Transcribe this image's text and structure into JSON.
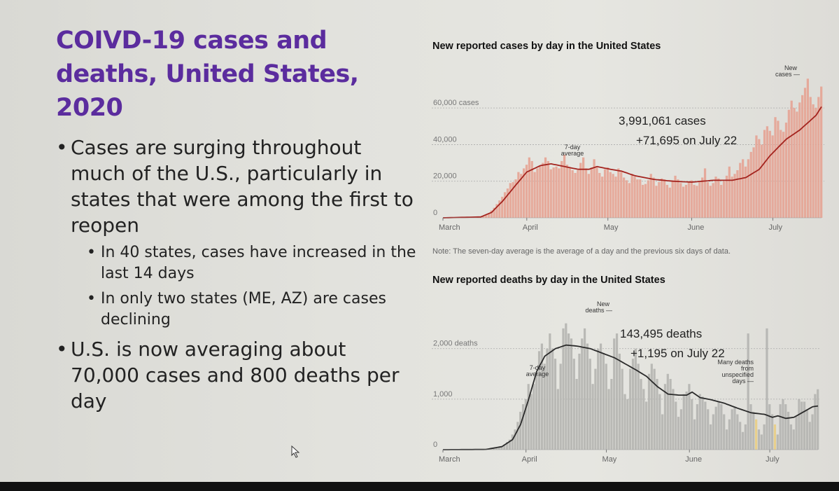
{
  "slide": {
    "title": "COIVD-19 cases and deaths, United States, 2020",
    "bullets": [
      {
        "level": 1,
        "text": "Cases are surging throughout much of the U.S., particularly in states that were among the first to reopen"
      },
      {
        "level": 2,
        "text": "In 40 states, cases have increased in the last 14 days"
      },
      {
        "level": 2,
        "text": "In only two states (ME, AZ) are cases declining"
      },
      {
        "level": 1,
        "text": "U.S. is now averaging about 70,000 cases and 800 deaths per day"
      }
    ]
  },
  "note": "Note: The seven-day average is the average of a day and the previous six days of data.",
  "chart_data": [
    {
      "type": "bar",
      "title": "New reported cases by day in the United States",
      "xlabel": "",
      "ylabel": "",
      "ylim": [
        0,
        70000
      ],
      "yticks": [
        {
          "value": 0,
          "label": "0"
        },
        {
          "value": 20000,
          "label": "20,000"
        },
        {
          "value": 40000,
          "label": "40,000"
        },
        {
          "value": 60000,
          "label": "60,000 cases"
        }
      ],
      "xticks": [
        {
          "day": 0,
          "label": "March"
        },
        {
          "day": 31,
          "label": "April"
        },
        {
          "day": 61,
          "label": "May"
        },
        {
          "day": 92,
          "label": "June"
        },
        {
          "day": 122,
          "label": "July"
        }
      ],
      "grid": true,
      "colors": {
        "bar": "#e6a393",
        "line": "#a3231e"
      },
      "annotations": {
        "total": "3,991,061 cases",
        "latest": "+71,695 on July 22",
        "avg_label": "7-day average",
        "bar_label": "New cases"
      },
      "x_start": "March 1",
      "average_keypoints": [
        [
          0,
          0
        ],
        [
          14,
          500
        ],
        [
          18,
          3000
        ],
        [
          22,
          9000
        ],
        [
          27,
          18000
        ],
        [
          31,
          25000
        ],
        [
          36,
          28500
        ],
        [
          40,
          29500
        ],
        [
          45,
          28000
        ],
        [
          50,
          26500
        ],
        [
          54,
          26500
        ],
        [
          57,
          28000
        ],
        [
          62,
          26500
        ],
        [
          66,
          25500
        ],
        [
          71,
          23000
        ],
        [
          78,
          21000
        ],
        [
          85,
          20000
        ],
        [
          92,
          19500
        ],
        [
          100,
          20500
        ],
        [
          107,
          20500
        ],
        [
          112,
          22000
        ],
        [
          117,
          26500
        ],
        [
          121,
          34000
        ],
        [
          127,
          43000
        ],
        [
          132,
          48000
        ],
        [
          138,
          56000
        ],
        [
          141,
          63000
        ],
        [
          144,
          64500
        ],
        [
          146,
          64500
        ]
      ],
      "daily_values": [
        0,
        0,
        0,
        0,
        0,
        0,
        0,
        0,
        0,
        0,
        0,
        0,
        0,
        300,
        500,
        900,
        1500,
        2500,
        4000,
        5500,
        7500,
        9500,
        11500,
        14000,
        16000,
        19000,
        19500,
        21000,
        25000,
        24000,
        27000,
        29000,
        33000,
        31000,
        25000,
        27000,
        28500,
        30000,
        33000,
        31000,
        26500,
        27500,
        28000,
        27000,
        31000,
        34500,
        29000,
        27500,
        26000,
        24500,
        26000,
        30000,
        33000,
        27000,
        24000,
        27500,
        32000,
        27500,
        24500,
        22500,
        26500,
        27500,
        25000,
        24000,
        22500,
        27000,
        25000,
        22000,
        20500,
        19000,
        24000,
        22500,
        21000,
        21000,
        18000,
        18500,
        20500,
        24000,
        22000,
        17500,
        19500,
        21500,
        21000,
        18000,
        16500,
        20500,
        23000,
        21000,
        19000,
        17000,
        18000,
        19500,
        20500,
        18000,
        17500,
        19500,
        22000,
        27000,
        19500,
        17500,
        19000,
        22500,
        21500,
        18000,
        20000,
        23000,
        28000,
        22500,
        24000,
        26000,
        30000,
        32000,
        28000,
        32000,
        36000,
        38500,
        45000,
        43000,
        40000,
        48000,
        50000,
        47500,
        45000,
        55000,
        53000,
        48000,
        47000,
        52000,
        59000,
        64000,
        60000,
        58000,
        63000,
        67000,
        71000,
        76000,
        66000,
        62000,
        60000,
        66000,
        71695
      ]
    },
    {
      "type": "bar",
      "title": "New reported deaths by day in the United States",
      "xlabel": "",
      "ylabel": "",
      "ylim": [
        0,
        2800
      ],
      "yticks": [
        {
          "value": 0,
          "label": "0"
        },
        {
          "value": 1000,
          "label": "1,000"
        },
        {
          "value": 2000,
          "label": "2,000 deaths"
        }
      ],
      "xticks": [
        {
          "day": 0,
          "label": "March"
        },
        {
          "day": 31,
          "label": "April"
        },
        {
          "day": 61,
          "label": "May"
        },
        {
          "day": 92,
          "label": "June"
        },
        {
          "day": 122,
          "label": "July"
        }
      ],
      "grid": true,
      "colors": {
        "bar": "#b4b4b0",
        "line": "#2a2a2a",
        "highlight": "#e8cf8c"
      },
      "annotations": {
        "total": "143,495 deaths",
        "latest": "+1,195 on July 22",
        "avg_label": "7-day average",
        "bar_label": "New deaths",
        "unspecified_label": "Many deaths from unspecified days"
      },
      "highlight_days": [
        117,
        124
      ],
      "x_start": "March 1",
      "average_keypoints": [
        [
          0,
          0
        ],
        [
          16,
          5
        ],
        [
          22,
          60
        ],
        [
          26,
          200
        ],
        [
          29,
          500
        ],
        [
          32,
          1000
        ],
        [
          35,
          1550
        ],
        [
          38,
          1850
        ],
        [
          42,
          2000
        ],
        [
          46,
          2070
        ],
        [
          50,
          2050
        ],
        [
          55,
          2000
        ],
        [
          60,
          1900
        ],
        [
          64,
          1820
        ],
        [
          68,
          1700
        ],
        [
          72,
          1580
        ],
        [
          76,
          1450
        ],
        [
          80,
          1250
        ],
        [
          84,
          1100
        ],
        [
          88,
          1080
        ],
        [
          91,
          1080
        ],
        [
          93,
          1140
        ],
        [
          96,
          1030
        ],
        [
          100,
          990
        ],
        [
          105,
          920
        ],
        [
          110,
          820
        ],
        [
          115,
          730
        ],
        [
          120,
          700
        ],
        [
          123,
          640
        ],
        [
          125,
          670
        ],
        [
          128,
          620
        ],
        [
          131,
          640
        ],
        [
          134,
          730
        ],
        [
          138,
          850
        ],
        [
          142,
          880
        ],
        [
          146,
          940
        ]
      ],
      "daily_values": [
        0,
        0,
        0,
        0,
        0,
        0,
        0,
        0,
        0,
        0,
        0,
        0,
        0,
        0,
        0,
        0,
        5,
        10,
        15,
        20,
        30,
        50,
        70,
        100,
        150,
        200,
        300,
        400,
        550,
        750,
        900,
        1000,
        1300,
        1100,
        1300,
        1500,
        1950,
        2100,
        1700,
        2000,
        2300,
        2000,
        1800,
        1200,
        1700,
        2400,
        2500,
        2300,
        2200,
        1800,
        1400,
        1900,
        2200,
        2400,
        2100,
        1800,
        1300,
        1600,
        2000,
        2100,
        1900,
        1700,
        1200,
        1400,
        2200,
        2300,
        1900,
        1600,
        1100,
        1000,
        1600,
        1800,
        2000,
        1700,
        1400,
        1200,
        950,
        1500,
        1700,
        1600,
        1400,
        1100,
        700,
        1300,
        1500,
        1400,
        1200,
        950,
        650,
        800,
        1100,
        1150,
        1300,
        1000,
        600,
        900,
        1100,
        1050,
        950,
        800,
        500,
        700,
        850,
        950,
        900,
        700,
        400,
        600,
        800,
        850,
        700,
        550,
        350,
        500,
        2300,
        900,
        750,
        600,
        400,
        300,
        500,
        2400,
        900,
        700,
        500,
        300,
        900,
        1000,
        900,
        750,
        500,
        400,
        650,
        1000,
        950,
        950,
        800,
        550,
        700,
        1100,
        1195
      ]
    }
  ]
}
